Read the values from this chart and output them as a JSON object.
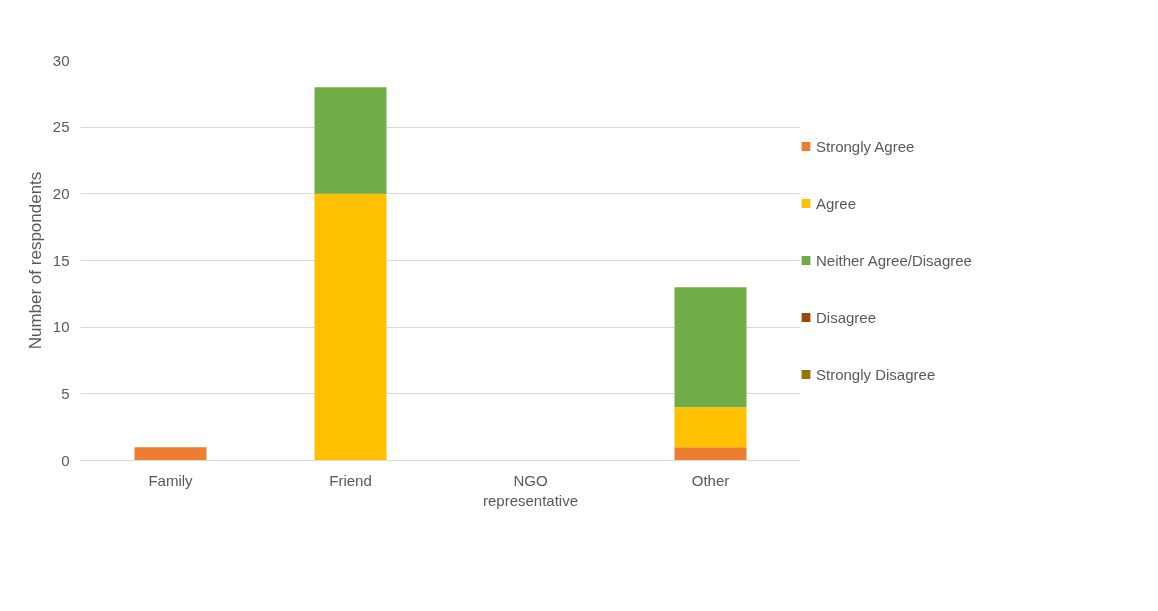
{
  "chart_data": {
    "type": "bar",
    "stacked": true,
    "ylabel": "Number of respondents",
    "categories": [
      "Family",
      "Friend",
      "NGO representative",
      "Other"
    ],
    "series": [
      {
        "name": "Strongly Agree",
        "color": "#ed7d31",
        "values": [
          1,
          0,
          0,
          1
        ]
      },
      {
        "name": "Agree",
        "color": "#ffc000",
        "values": [
          0,
          20,
          0,
          3
        ]
      },
      {
        "name": "Neither Agree/Disagree",
        "color": "#70ad47",
        "values": [
          0,
          8,
          0,
          9
        ]
      },
      {
        "name": "Disagree",
        "color": "#9e480e",
        "values": [
          0,
          0,
          0,
          0
        ]
      },
      {
        "name": "Strongly Disagree",
        "color": "#997300",
        "values": [
          0,
          0,
          0,
          0
        ]
      }
    ],
    "ylim": [
      0,
      30
    ],
    "yticks": [
      0,
      5,
      10,
      15,
      20,
      25,
      30
    ],
    "grid": "y",
    "legend": "right"
  }
}
